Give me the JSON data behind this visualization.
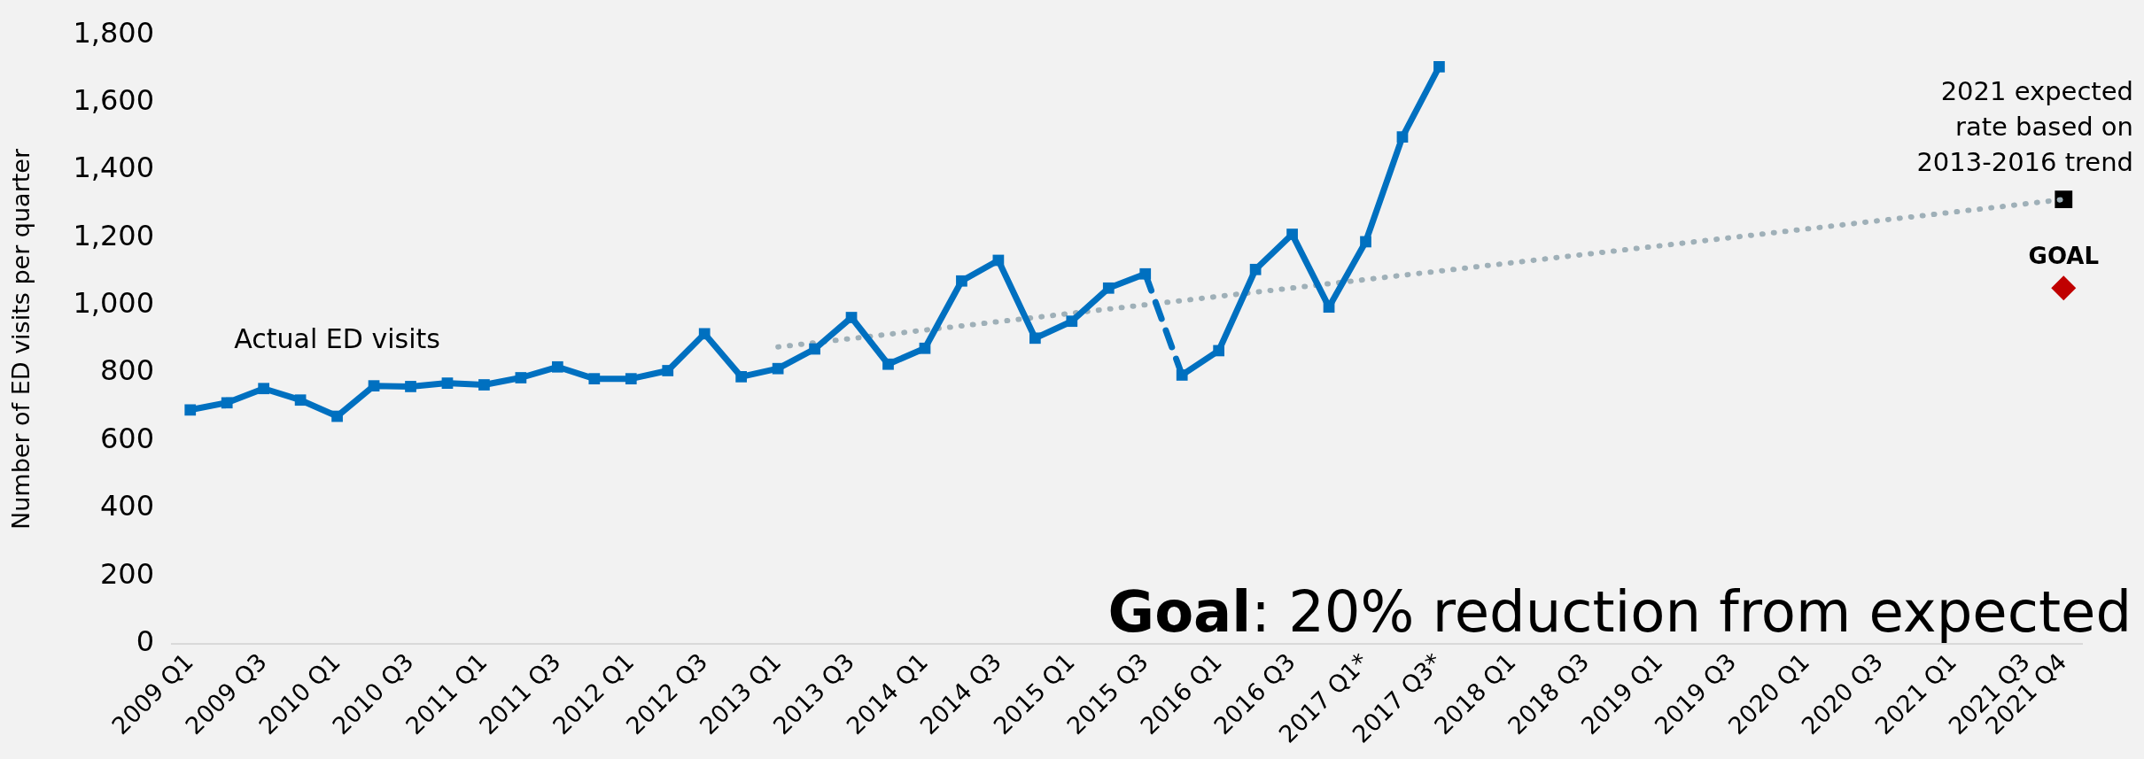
{
  "chart_data": {
    "type": "line",
    "ylabel": "Number of ED visits per quarter",
    "categories": [
      "2009 Q1",
      null,
      "2009 Q3",
      null,
      "2010 Q1",
      null,
      "2010 Q3",
      null,
      "2011 Q1",
      null,
      "2011 Q3",
      null,
      "2012 Q1",
      null,
      "2012 Q3",
      null,
      "2013 Q1",
      null,
      "2013 Q3",
      null,
      "2014 Q1",
      null,
      "2014 Q3",
      null,
      "2015 Q1",
      null,
      "2015 Q3",
      null,
      "2016 Q1",
      null,
      "2016 Q3",
      null,
      "2017 Q1*",
      null,
      "2017 Q3*",
      null,
      "2018 Q1",
      null,
      "2018 Q3",
      null,
      "2019 Q1",
      null,
      "2019 Q3",
      null,
      "2020 Q1",
      null,
      "2020 Q3",
      null,
      "2021 Q1",
      null,
      "2021 Q3",
      "2021 Q4"
    ],
    "series": [
      {
        "color": "#0070c0",
        "marker": "square",
        "line_style": "solid",
        "values": [
          691,
          712,
          754,
          720,
          672,
          762,
          760,
          770,
          765,
          786,
          818,
          783,
          783,
          807,
          916,
          789,
          813,
          871,
          964,
          826,
          873,
          1072,
          1133,
          903,
          953,
          1051,
          1093,
          null,
          null,
          null,
          null,
          null,
          null,
          null,
          null,
          null,
          null,
          null,
          null,
          null,
          null,
          null,
          null,
          null,
          null,
          null,
          null,
          null,
          null,
          null,
          null,
          null
        ]
      },
      {
        "color": "#0070c0",
        "marker": "none",
        "line_style": "dashed",
        "values": [
          null,
          null,
          null,
          null,
          null,
          null,
          null,
          null,
          null,
          null,
          null,
          null,
          null,
          null,
          null,
          null,
          null,
          null,
          null,
          null,
          null,
          null,
          null,
          null,
          null,
          null,
          1093,
          794,
          null,
          null,
          null,
          null,
          null,
          null,
          null,
          null,
          null,
          null,
          null,
          null,
          null,
          null,
          null,
          null,
          null,
          null,
          null,
          null,
          null,
          null,
          null,
          null
        ]
      },
      {
        "color": "#0070c0",
        "marker": "square",
        "line_style": "solid",
        "values": [
          null,
          null,
          null,
          null,
          null,
          null,
          null,
          null,
          null,
          null,
          null,
          null,
          null,
          null,
          null,
          null,
          null,
          null,
          null,
          null,
          null,
          null,
          null,
          null,
          null,
          null,
          null,
          794,
          866,
          1106,
          1210,
          995,
          1188,
          1498,
          1705,
          null,
          null,
          null,
          null,
          null,
          null,
          null,
          null,
          null,
          null,
          null,
          null,
          null,
          null,
          null,
          null,
          null
        ]
      },
      {
        "color": "#9fb0b8",
        "marker": "none",
        "line_style": "dotted",
        "values": [
          null,
          null,
          null,
          null,
          null,
          null,
          null,
          null,
          null,
          null,
          null,
          null,
          null,
          null,
          null,
          null,
          877,
          null,
          null,
          null,
          null,
          null,
          null,
          null,
          null,
          null,
          null,
          null,
          null,
          null,
          null,
          null,
          null,
          null,
          null,
          null,
          null,
          null,
          null,
          null,
          null,
          null,
          null,
          null,
          null,
          null,
          null,
          null,
          null,
          null,
          null,
          1313
        ]
      },
      {
        "type": "scatter",
        "color": "#000000",
        "marker": "square",
        "x": [
          "2021 Q4"
        ],
        "values": [
          1313
        ]
      },
      {
        "type": "scatter",
        "color": "#c00000",
        "marker": "diamond",
        "x": [
          "2021 Q4"
        ],
        "values": [
          1051
        ]
      }
    ],
    "ylim": [
      0,
      1800
    ],
    "yticks": [
      0,
      200,
      400,
      600,
      800,
      {
        "value": 1000,
        "label": "1,000"
      },
      {
        "value": 1200,
        "label": "1,200"
      },
      {
        "value": 1400,
        "label": "1,400"
      },
      {
        "value": 1600,
        "label": "1,600"
      },
      {
        "value": 1800,
        "label": "1,800"
      }
    ],
    "grid": false,
    "legend": false,
    "annotations": [
      "Actual ED visits",
      "2021 expected rate based on 2013-2016 trend",
      "GOAL",
      "Goal: 20% reduction from expected"
    ]
  }
}
